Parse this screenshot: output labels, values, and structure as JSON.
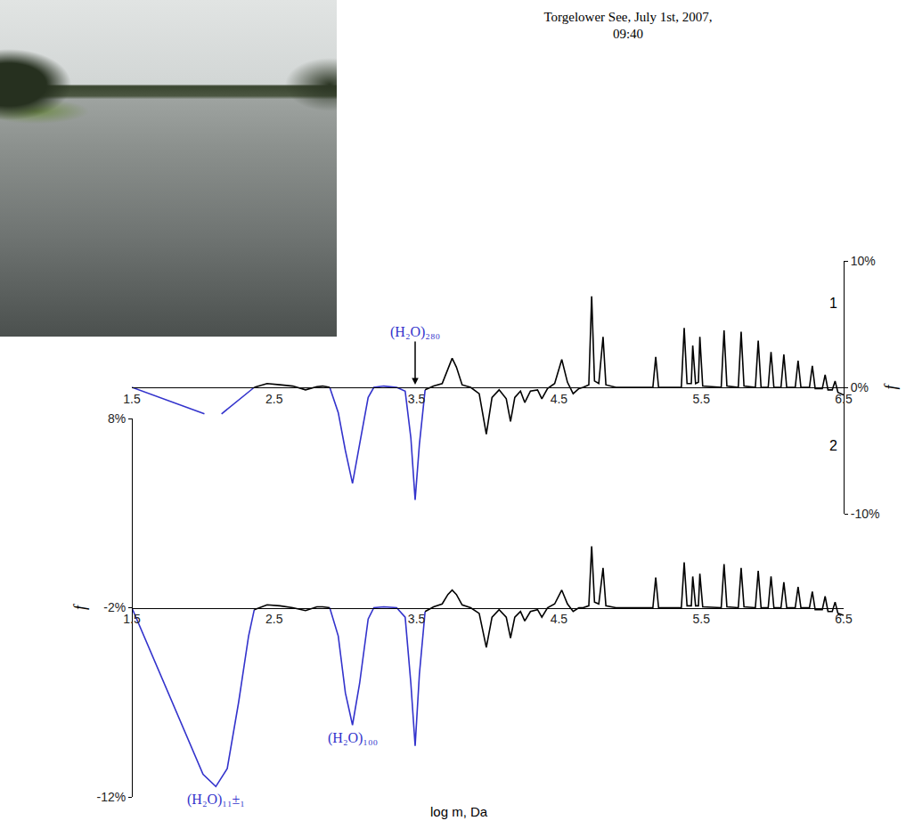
{
  "chart_data": {
    "type": "line",
    "title": "Torgelower See, July 1st, 2007, 09:40",
    "x_label": "log m, Da",
    "y_label": "f",
    "y2_label": "f",
    "xlim": [
      1.5,
      6.5
    ],
    "xticks": [
      1.5,
      2.5,
      3.5,
      4.5,
      5.5,
      6.5
    ],
    "ylim": [
      -10,
      10
    ],
    "yticks": [
      {
        "value": 10,
        "label": "10%"
      },
      {
        "value": 0,
        "label": "0%"
      },
      {
        "value": -10,
        "label": "-10%"
      }
    ],
    "y2lim": [
      -12,
      8
    ],
    "y2ticks": [
      {
        "value": 8,
        "label": "8%"
      },
      {
        "value": -2,
        "label": "-2%"
      },
      {
        "value": -12,
        "label": "-12%"
      }
    ],
    "grid": false,
    "series": [
      {
        "name": "1",
        "axis": "y",
        "baseline": 0,
        "x": [
          1.5,
          2.01,
          2.07,
          2.13,
          2.36,
          2.45,
          2.54,
          2.63,
          2.72,
          2.8,
          2.84,
          2.89,
          2.95,
          3.0,
          3.05,
          3.1,
          3.16,
          3.2,
          3.27,
          3.36,
          3.42,
          3.46,
          3.49,
          3.52,
          3.56,
          3.62,
          3.68,
          3.72,
          3.75,
          3.78,
          3.82,
          3.88,
          3.94,
          3.99,
          4.03,
          4.08,
          4.13,
          4.16,
          4.19,
          4.23,
          4.26,
          4.3,
          4.35,
          4.38,
          4.42,
          4.47,
          4.52,
          4.56,
          4.6,
          4.64,
          4.67,
          4.71,
          4.73,
          4.75,
          4.78,
          4.81,
          4.83,
          4.9,
          5.16,
          5.18,
          5.2,
          5.36,
          5.38,
          5.4,
          5.43,
          5.44,
          5.46,
          5.48,
          5.49,
          5.51,
          5.64,
          5.66,
          5.68,
          5.76,
          5.78,
          5.8,
          5.88,
          5.9,
          5.92,
          5.97,
          5.99,
          6.01,
          6.06,
          6.08,
          6.1,
          6.16,
          6.18,
          6.2,
          6.26,
          6.28,
          6.3,
          6.35,
          6.37,
          6.39,
          6.42,
          6.44,
          6.46,
          6.5
        ],
        "values": [
          0,
          -2.1,
          null,
          -2.1,
          0,
          0.3,
          0.2,
          0.1,
          -0.2,
          0.05,
          0.1,
          0,
          -2.0,
          -5.0,
          -7.6,
          -4.5,
          -0.8,
          0,
          0.1,
          0,
          -0.3,
          -4.0,
          -8.9,
          -4.5,
          -0.2,
          0.1,
          0.3,
          1.5,
          2.3,
          1.6,
          0.2,
          0,
          -0.5,
          -3.7,
          -0.8,
          -0.2,
          -0.9,
          -2.7,
          -0.8,
          -0.3,
          -1.2,
          -0.3,
          -0.2,
          -0.9,
          -0.1,
          0.3,
          2.2,
          0.4,
          -0.5,
          -0.1,
          0,
          0.2,
          7.2,
          0.5,
          0.3,
          4.0,
          0.2,
          0,
          0,
          2.4,
          0,
          0,
          4.7,
          0.3,
          0.3,
          3.3,
          0.3,
          0.4,
          4.0,
          0.1,
          0,
          4.5,
          0.1,
          0,
          4.4,
          0.1,
          0,
          3.7,
          0,
          0,
          2.8,
          0,
          0,
          2.6,
          0,
          0,
          2.1,
          0,
          0,
          1.7,
          -0.1,
          -0.1,
          1.0,
          -0.2,
          -0.2,
          0.5,
          -0.4,
          -0.6
        ],
        "colors": [
          "#3333cc",
          "#3333cc",
          "#3333cc",
          "#3333cc",
          "#000000",
          "#000000",
          "#000000",
          "#000000",
          "#000000",
          "#000000",
          "#000000",
          "#3333cc",
          "#3333cc",
          "#3333cc",
          "#3333cc",
          "#3333cc",
          "#3333cc",
          "#3333cc",
          "#3333cc",
          "#3333cc",
          "#3333cc",
          "#3333cc",
          "#3333cc",
          "#3333cc",
          "#000000",
          "#000000",
          "#000000",
          "#000000",
          "#000000",
          "#000000",
          "#000000",
          "#000000",
          "#000000",
          "#000000",
          "#000000",
          "#000000",
          "#000000",
          "#000000",
          "#000000",
          "#000000",
          "#000000",
          "#000000",
          "#000000",
          "#000000",
          "#000000",
          "#000000",
          "#000000",
          "#000000",
          "#000000",
          "#000000",
          "#000000",
          "#000000",
          "#000000",
          "#000000",
          "#000000",
          "#000000",
          "#000000",
          "#000000",
          "#000000",
          "#000000",
          "#000000",
          "#000000",
          "#000000",
          "#000000",
          "#000000",
          "#000000",
          "#000000",
          "#000000",
          "#000000",
          "#000000",
          "#000000",
          "#000000",
          "#000000",
          "#000000",
          "#000000",
          "#000000",
          "#000000",
          "#000000",
          "#000000",
          "#000000",
          "#000000",
          "#000000",
          "#000000",
          "#000000",
          "#000000",
          "#000000",
          "#000000",
          "#000000",
          "#000000",
          "#000000",
          "#000000",
          "#000000",
          "#000000",
          "#000000",
          "#000000",
          "#000000",
          "#000000",
          "#000000"
        ]
      },
      {
        "name": "2",
        "axis": "y2",
        "baseline": -2,
        "x": [
          1.5,
          1.7,
          1.9,
          2.0,
          2.09,
          2.17,
          2.25,
          2.32,
          2.36,
          2.45,
          2.54,
          2.63,
          2.72,
          2.8,
          2.84,
          2.89,
          2.95,
          3.0,
          3.05,
          3.1,
          3.16,
          3.2,
          3.27,
          3.36,
          3.42,
          3.46,
          3.49,
          3.52,
          3.56,
          3.62,
          3.68,
          3.72,
          3.75,
          3.78,
          3.82,
          3.88,
          3.94,
          3.99,
          4.03,
          4.08,
          4.13,
          4.16,
          4.19,
          4.23,
          4.26,
          4.3,
          4.35,
          4.38,
          4.42,
          4.47,
          4.52,
          4.56,
          4.6,
          4.64,
          4.67,
          4.71,
          4.73,
          4.75,
          4.78,
          4.81,
          4.83,
          4.9,
          5.16,
          5.18,
          5.2,
          5.36,
          5.38,
          5.4,
          5.43,
          5.44,
          5.46,
          5.48,
          5.49,
          5.51,
          5.64,
          5.66,
          5.68,
          5.76,
          5.78,
          5.8,
          5.88,
          5.9,
          5.92,
          5.97,
          5.99,
          6.01,
          6.06,
          6.08,
          6.1,
          6.16,
          6.18,
          6.2,
          6.26,
          6.28,
          6.3,
          6.35,
          6.37,
          6.39,
          6.42,
          6.44,
          6.46,
          6.5
        ],
        "values": [
          -2,
          -5.5,
          -9.0,
          -10.8,
          -11.45,
          -10.5,
          -7.0,
          -3.5,
          -2.1,
          -1.85,
          -1.9,
          -2.0,
          -2.15,
          -1.95,
          -1.95,
          -2.0,
          -3.5,
          -6.5,
          -8.2,
          -6.0,
          -2.6,
          -2.0,
          -1.95,
          -2.0,
          -2.5,
          -6.0,
          -9.3,
          -5.5,
          -2.2,
          -1.95,
          -1.8,
          -1.3,
          -1.07,
          -1.3,
          -1.85,
          -2.0,
          -2.3,
          -4.1,
          -2.5,
          -2.1,
          -2.5,
          -3.6,
          -2.5,
          -2.2,
          -2.7,
          -2.2,
          -2.1,
          -2.5,
          -2.0,
          -1.8,
          -1.07,
          -1.8,
          -2.2,
          -2.0,
          -2.0,
          -1.9,
          1.25,
          -1.7,
          -1.8,
          0.1,
          -1.9,
          -2.0,
          -2.0,
          -0.4,
          -2.0,
          -2.0,
          0.4,
          -1.9,
          -1.9,
          -0.35,
          -1.9,
          -1.9,
          -0.2,
          -1.95,
          -2.0,
          0.3,
          -1.95,
          -2.0,
          0.1,
          -1.95,
          -2.0,
          -0.05,
          -2.0,
          -2.0,
          -0.35,
          -2.0,
          -2.0,
          -0.65,
          -2.0,
          -2.0,
          -0.9,
          -2.0,
          -2.0,
          -1.15,
          -2.1,
          -2.1,
          -1.4,
          -2.2,
          -2.2,
          -1.7,
          -2.3,
          -2.4
        ],
        "colors": [
          "#3333cc",
          "#3333cc",
          "#3333cc",
          "#3333cc",
          "#3333cc",
          "#3333cc",
          "#3333cc",
          "#3333cc",
          "#000000",
          "#000000",
          "#000000",
          "#000000",
          "#000000",
          "#000000",
          "#000000",
          "#3333cc",
          "#3333cc",
          "#3333cc",
          "#3333cc",
          "#3333cc",
          "#3333cc",
          "#3333cc",
          "#3333cc",
          "#3333cc",
          "#3333cc",
          "#3333cc",
          "#3333cc",
          "#3333cc",
          "#000000",
          "#000000",
          "#000000",
          "#000000",
          "#000000",
          "#000000",
          "#000000",
          "#000000",
          "#000000",
          "#000000",
          "#000000",
          "#000000",
          "#000000",
          "#000000",
          "#000000",
          "#000000",
          "#000000",
          "#000000",
          "#000000",
          "#000000",
          "#000000",
          "#000000",
          "#000000",
          "#000000",
          "#000000",
          "#000000",
          "#000000",
          "#000000",
          "#000000",
          "#000000",
          "#000000",
          "#000000",
          "#000000",
          "#000000",
          "#000000",
          "#000000",
          "#000000",
          "#000000",
          "#000000",
          "#000000",
          "#000000",
          "#000000",
          "#000000",
          "#000000",
          "#000000",
          "#000000",
          "#000000",
          "#000000",
          "#000000",
          "#000000",
          "#000000",
          "#000000",
          "#000000",
          "#000000",
          "#000000",
          "#000000",
          "#000000",
          "#000000",
          "#000000",
          "#000000",
          "#000000",
          "#000000",
          "#000000",
          "#000000",
          "#000000",
          "#000000",
          "#000000",
          "#000000",
          "#000000",
          "#000000",
          "#000000",
          "#000000",
          "#000000",
          "#000000"
        ]
      }
    ],
    "annotations": [
      {
        "text": "(H₂O)₂₈₀",
        "x": 3.49,
        "series": "1",
        "arrow": true
      },
      {
        "text": "(H₂O)₁₀₀",
        "x": 3.05,
        "series": "2",
        "arrow": false
      },
      {
        "text": "(H₂O)₁₁±₁",
        "x": 2.09,
        "series": "2",
        "arrow": false
      }
    ]
  }
}
